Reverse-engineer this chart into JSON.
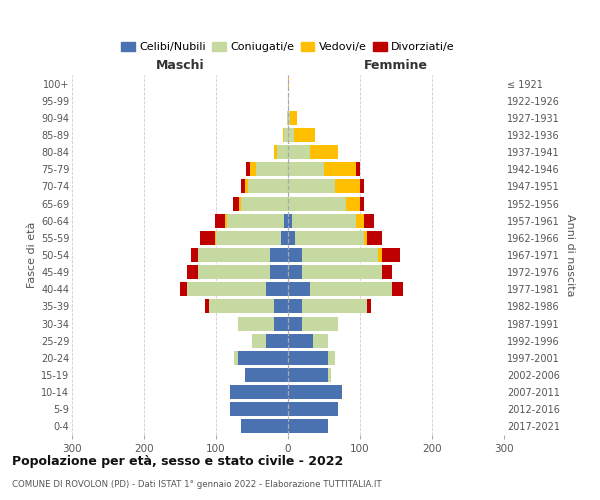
{
  "age_groups": [
    "0-4",
    "5-9",
    "10-14",
    "15-19",
    "20-24",
    "25-29",
    "30-34",
    "35-39",
    "40-44",
    "45-49",
    "50-54",
    "55-59",
    "60-64",
    "65-69",
    "70-74",
    "75-79",
    "80-84",
    "85-89",
    "90-94",
    "95-99",
    "100+"
  ],
  "birth_years": [
    "2017-2021",
    "2012-2016",
    "2007-2011",
    "2002-2006",
    "1997-2001",
    "1992-1996",
    "1987-1991",
    "1982-1986",
    "1977-1981",
    "1972-1976",
    "1967-1971",
    "1962-1966",
    "1957-1961",
    "1952-1956",
    "1947-1951",
    "1942-1946",
    "1937-1941",
    "1932-1936",
    "1927-1931",
    "1922-1926",
    "≤ 1921"
  ],
  "maschi": {
    "celibi": [
      65,
      80,
      80,
      60,
      70,
      30,
      20,
      20,
      30,
      25,
      25,
      10,
      5,
      0,
      0,
      0,
      0,
      0,
      0,
      0,
      0
    ],
    "coniugati": [
      0,
      0,
      0,
      0,
      5,
      20,
      50,
      90,
      110,
      100,
      100,
      90,
      80,
      65,
      55,
      45,
      15,
      5,
      2,
      0,
      0
    ],
    "vedovi": [
      0,
      0,
      0,
      0,
      0,
      0,
      0,
      0,
      0,
      0,
      0,
      2,
      2,
      3,
      5,
      8,
      5,
      2,
      0,
      0,
      0
    ],
    "divorziati": [
      0,
      0,
      0,
      0,
      0,
      0,
      0,
      5,
      10,
      15,
      10,
      20,
      15,
      8,
      5,
      5,
      0,
      0,
      0,
      0,
      0
    ]
  },
  "femmine": {
    "nubili": [
      55,
      70,
      75,
      55,
      55,
      35,
      20,
      20,
      30,
      20,
      20,
      10,
      5,
      0,
      0,
      0,
      0,
      0,
      0,
      0,
      0
    ],
    "coniugate": [
      0,
      0,
      0,
      5,
      10,
      20,
      50,
      90,
      115,
      110,
      105,
      95,
      90,
      80,
      65,
      50,
      30,
      8,
      3,
      1,
      0
    ],
    "vedove": [
      0,
      0,
      0,
      0,
      0,
      0,
      0,
      0,
      0,
      0,
      5,
      5,
      10,
      20,
      35,
      45,
      40,
      30,
      10,
      1,
      1
    ],
    "divorziate": [
      0,
      0,
      0,
      0,
      0,
      0,
      0,
      5,
      15,
      15,
      25,
      20,
      15,
      5,
      5,
      5,
      0,
      0,
      0,
      0,
      0
    ]
  },
  "colors": {
    "celibi_nubili": "#4a72b0",
    "coniugati": "#c6d9a0",
    "vedovi": "#ffbf00",
    "divorziati": "#be0000"
  },
  "title": "Popolazione per età, sesso e stato civile - 2022",
  "subtitle": "COMUNE DI ROVOLON (PD) - Dati ISTAT 1° gennaio 2022 - Elaborazione TUTTITALIA.IT",
  "ylabel_left": "Fasce di età",
  "ylabel_right": "Anni di nascita",
  "xlabel_left": "Maschi",
  "xlabel_right": "Femmine",
  "xlim": 300,
  "legend_labels": [
    "Celibi/Nubili",
    "Coniugati/e",
    "Vedovi/e",
    "Divorziati/e"
  ],
  "background_color": "#ffffff",
  "grid_color": "#cccccc"
}
